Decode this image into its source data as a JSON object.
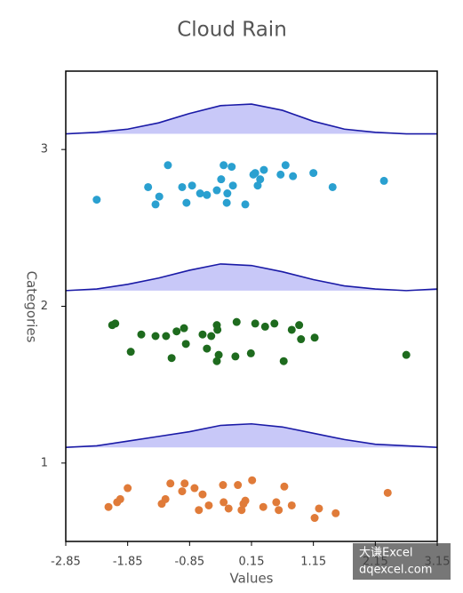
{
  "chart_data": {
    "type": "raincloud",
    "title": "Cloud Rain",
    "xlabel": "Values",
    "ylabel": "Categories",
    "xlim": [
      -2.85,
      3.15
    ],
    "ylim": [
      0.5,
      3.5
    ],
    "xticks": [
      -2.85,
      -1.85,
      -0.85,
      0.15,
      1.15,
      2.15,
      3.15
    ],
    "yticks": [
      1,
      2,
      3
    ],
    "density_color": "#1a1aa6",
    "density_fill": "#c8c8f8",
    "density_x": [
      -2.85,
      -2.35,
      -1.85,
      -1.35,
      -0.85,
      -0.35,
      0.15,
      0.65,
      1.15,
      1.65,
      2.15,
      2.65,
      3.15
    ],
    "series": [
      {
        "color": "#e07b39",
        "x": [
          -2.16,
          -2.02,
          -1.97,
          -1.85,
          -1.3,
          -1.24,
          -1.16,
          -0.97,
          -0.93,
          -0.77,
          -0.7,
          -0.64,
          -0.54,
          -0.31,
          -0.3,
          -0.22,
          -0.07,
          -0.01,
          0.02,
          0.05,
          0.16,
          0.34,
          0.55,
          0.59,
          0.68,
          0.8,
          1.17,
          1.24,
          1.51,
          2.35
        ],
        "y": [
          0.72,
          0.75,
          0.77,
          0.84,
          0.74,
          0.77,
          0.87,
          0.82,
          0.87,
          0.84,
          0.7,
          0.8,
          0.73,
          0.86,
          0.75,
          0.71,
          0.86,
          0.7,
          0.74,
          0.76,
          0.89,
          0.72,
          0.75,
          0.7,
          0.85,
          0.73,
          0.65,
          0.71,
          0.68,
          0.81
        ],
        "density": [
          1.1,
          1.11,
          1.14,
          1.17,
          1.2,
          1.24,
          1.25,
          1.23,
          1.19,
          1.15,
          1.12,
          1.11,
          1.1
        ]
      },
      {
        "color": "#1e6b1e",
        "x": [
          -2.1,
          -2.05,
          -1.8,
          -1.63,
          -1.4,
          -1.23,
          -1.14,
          -1.06,
          -0.94,
          -0.91,
          -0.64,
          -0.57,
          -0.5,
          -0.41,
          -0.41,
          -0.38,
          -0.4,
          -0.11,
          -0.09,
          0.14,
          0.21,
          0.37,
          0.52,
          0.67,
          0.8,
          0.92,
          0.95,
          1.17,
          2.65
        ],
        "y": [
          1.88,
          1.89,
          1.71,
          1.82,
          1.81,
          1.81,
          1.67,
          1.84,
          1.86,
          1.76,
          1.82,
          1.73,
          1.81,
          1.88,
          1.65,
          1.69,
          1.85,
          1.68,
          1.9,
          1.7,
          1.89,
          1.87,
          1.89,
          1.65,
          1.85,
          1.88,
          1.79,
          1.8,
          1.69
        ],
        "density": [
          2.1,
          2.11,
          2.14,
          2.18,
          2.23,
          2.27,
          2.26,
          2.22,
          2.17,
          2.13,
          2.11,
          2.1,
          2.11
        ]
      },
      {
        "color": "#2aa0d0",
        "x": [
          -2.35,
          -1.2,
          -1.52,
          -1.34,
          -1.4,
          -0.97,
          -0.81,
          -0.9,
          -0.68,
          -0.57,
          -0.41,
          -0.3,
          -0.34,
          -0.24,
          -0.17,
          -0.15,
          -0.25,
          0.05,
          0.18,
          0.21,
          0.35,
          0.25,
          0.29,
          0.62,
          0.7,
          0.82,
          1.15,
          1.46,
          2.29
        ],
        "y": [
          2.68,
          2.9,
          2.76,
          2.7,
          2.65,
          2.76,
          2.77,
          2.66,
          2.72,
          2.71,
          2.74,
          2.9,
          2.81,
          2.72,
          2.89,
          2.77,
          2.66,
          2.65,
          2.84,
          2.85,
          2.87,
          2.77,
          2.81,
          2.84,
          2.9,
          2.83,
          2.85,
          2.76,
          2.8
        ],
        "density": [
          3.1,
          3.11,
          3.13,
          3.17,
          3.23,
          3.28,
          3.29,
          3.25,
          3.18,
          3.13,
          3.11,
          3.1,
          3.1
        ]
      }
    ]
  },
  "watermark": {
    "line1": "大谦Excel",
    "line2": "dqexcel.com"
  }
}
